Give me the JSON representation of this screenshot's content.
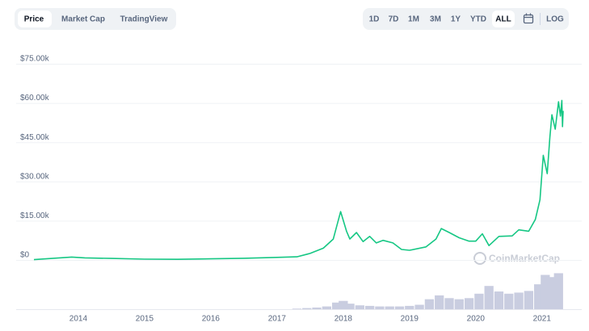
{
  "controls": {
    "tabs": [
      "Price",
      "Market Cap",
      "TradingView"
    ],
    "ranges": [
      "1D",
      "7D",
      "1M",
      "3M",
      "1Y",
      "YTD",
      "ALL"
    ],
    "log": "LOG"
  },
  "chart_data": {
    "type": "line",
    "color": "#16c784",
    "watermark": "CoinMarketCap",
    "x": [
      2013.33,
      2013.9,
      2014.1,
      2014.5,
      2015.0,
      2015.5,
      2016.0,
      2016.5,
      2017.0,
      2017.3,
      2017.5,
      2017.7,
      2017.85,
      2017.96,
      2018.05,
      2018.1,
      2018.2,
      2018.3,
      2018.4,
      2018.5,
      2018.6,
      2018.75,
      2018.88,
      2019.0,
      2019.25,
      2019.4,
      2019.48,
      2019.6,
      2019.75,
      2019.9,
      2020.0,
      2020.1,
      2020.2,
      2020.35,
      2020.55,
      2020.65,
      2020.8,
      2020.9,
      2020.97,
      2021.02,
      2021.08,
      2021.12,
      2021.15,
      2021.2,
      2021.25,
      2021.28,
      2021.3,
      2021.31,
      2021.32
    ],
    "values": [
      130,
      1100,
      800,
      600,
      300,
      250,
      430,
      650,
      1000,
      1200,
      2500,
      4500,
      8000,
      18500,
      11000,
      8000,
      10500,
      7000,
      9000,
      6500,
      7500,
      6500,
      4000,
      3700,
      5000,
      8000,
      12000,
      10500,
      8500,
      7200,
      7200,
      10000,
      5500,
      9000,
      9200,
      11500,
      11000,
      15500,
      23000,
      40000,
      33000,
      47000,
      55500,
      50000,
      60500,
      55000,
      61000,
      51000,
      57000
    ],
    "xlim": [
      2013.33,
      2021.32
    ],
    "xticks": [
      2014,
      2015,
      2016,
      2017,
      2018,
      2019,
      2020,
      2021
    ],
    "ylim": [
      0,
      75000
    ],
    "yticks": [
      {
        "value": 0,
        "label": "$0"
      },
      {
        "value": 15000,
        "label": "$15.00k"
      },
      {
        "value": 30000,
        "label": "$30.00k"
      },
      {
        "value": 45000,
        "label": "$45.00k"
      },
      {
        "value": 60000,
        "label": "$60.00k"
      },
      {
        "value": 75000,
        "label": "$75.00k"
      }
    ],
    "grid": true,
    "volume": {
      "color": "#c9cde0",
      "ylim": [
        0,
        70
      ],
      "x": [
        2017.3,
        2017.45,
        2017.6,
        2017.75,
        2017.9,
        2018.0,
        2018.1,
        2018.25,
        2018.4,
        2018.55,
        2018.7,
        2018.85,
        2019.0,
        2019.15,
        2019.3,
        2019.45,
        2019.6,
        2019.75,
        2019.9,
        2020.05,
        2020.2,
        2020.35,
        2020.5,
        2020.65,
        2020.8,
        2020.95,
        2021.05,
        2021.15,
        2021.25
      ],
      "values": [
        1,
        2,
        3,
        5,
        12,
        15,
        10,
        7,
        6,
        5,
        5,
        5,
        6,
        8,
        18,
        25,
        20,
        18,
        20,
        28,
        42,
        32,
        28,
        30,
        33,
        45,
        62,
        58,
        65
      ]
    }
  }
}
